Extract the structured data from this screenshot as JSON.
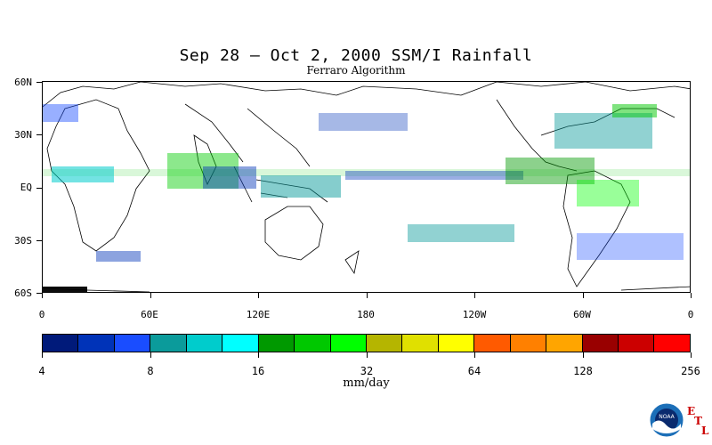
{
  "title": "Sep 28 – Oct 2, 2000 SSM/I Rainfall",
  "subtitle": "Ferraro Algorithm",
  "map": {
    "lat_labels": [
      "60N",
      "30N",
      "EQ",
      "30S",
      "60S"
    ],
    "lon_labels": [
      "0",
      "60E",
      "120E",
      "180",
      "120W",
      "60W",
      "0"
    ]
  },
  "colorbar": {
    "colors": [
      "#001a7a",
      "#0033b8",
      "#1a4dff",
      "#0b9b9b",
      "#00cccc",
      "#00ffff",
      "#009900",
      "#00c800",
      "#00ff00",
      "#b5b500",
      "#e0e000",
      "#ffff00",
      "#ff5a00",
      "#ff8000",
      "#ffa500",
      "#990000",
      "#cc0000",
      "#ff0000"
    ],
    "tick_labels": [
      "4",
      "8",
      "16",
      "32",
      "64",
      "128",
      "256"
    ],
    "units": "mm/day"
  },
  "logo": {
    "text": "NOAA",
    "letters": [
      "E",
      "T",
      "L"
    ],
    "colors": {
      "outer": "#1c6fb8",
      "inner": "#0a2a6e",
      "letters": "#cc0000"
    }
  }
}
